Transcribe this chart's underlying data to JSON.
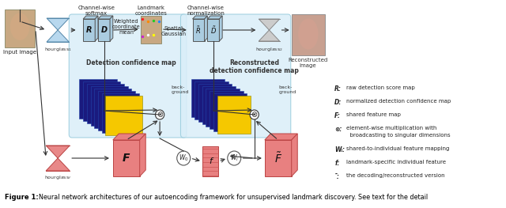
{
  "bg_color": "#ffffff",
  "caption_bold": "Figure 1:",
  "caption_text": "  Neural network architectures of our autoencoding framework for unsupervised landmark discovery. See text for the detail",
  "legend": [
    [
      "R",
      "raw detection score map"
    ],
    [
      "D",
      "normalized detection confidence map"
    ],
    [
      "F",
      "shared feature map"
    ],
    [
      "⊗",
      "element-wise multiplication with\nbroadcasting to singular dimensions"
    ],
    [
      "Wᵢ",
      "shared-to-individual feature mapping"
    ],
    [
      "f",
      "landmark-specific individual feature"
    ],
    [
      "~",
      "the decoding/reconstructed version"
    ]
  ],
  "blue_light": "#cde4f5",
  "blue_box": "#a8cce0",
  "pink_box": "#e88080",
  "pink_light": "#f0a0a0",
  "gray_box": "#c8c8c8",
  "arrow_col": "#333333"
}
